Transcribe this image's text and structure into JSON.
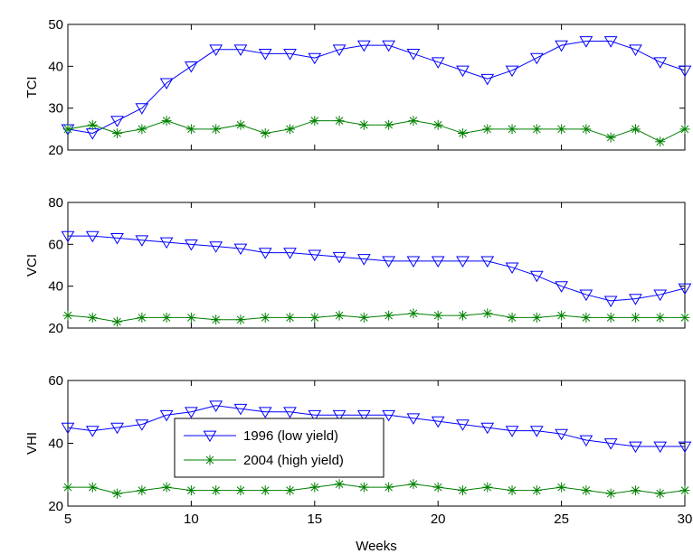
{
  "chart_data": [
    {
      "type": "line",
      "ylabel": "TCI",
      "xlim": [
        5,
        30
      ],
      "ylim": [
        20,
        50
      ],
      "yticks": [
        20,
        30,
        40,
        50
      ],
      "x": [
        5,
        6,
        7,
        8,
        9,
        10,
        11,
        12,
        13,
        14,
        15,
        16,
        17,
        18,
        19,
        20,
        21,
        22,
        23,
        24,
        25,
        26,
        27,
        28,
        29,
        30
      ],
      "series": [
        {
          "name": "1996 (low yield)",
          "color": "#0000ff",
          "marker": "triangle-down",
          "values": [
            25,
            24,
            27,
            30,
            36,
            40,
            44,
            44,
            43,
            43,
            42,
            44,
            45,
            45,
            43,
            41,
            39,
            37,
            39,
            42,
            45,
            46,
            46,
            44,
            41,
            39
          ]
        },
        {
          "name": "2004 (high yield)",
          "color": "#008000",
          "marker": "asterisk",
          "values": [
            25,
            26,
            24,
            25,
            27,
            25,
            25,
            26,
            24,
            25,
            27,
            27,
            26,
            26,
            27,
            26,
            24,
            25,
            25,
            25,
            25,
            25,
            23,
            25,
            22,
            25
          ]
        }
      ]
    },
    {
      "type": "line",
      "ylabel": "VCI",
      "xlim": [
        5,
        30
      ],
      "ylim": [
        20,
        80
      ],
      "yticks": [
        20,
        40,
        60,
        80
      ],
      "x": [
        5,
        6,
        7,
        8,
        9,
        10,
        11,
        12,
        13,
        14,
        15,
        16,
        17,
        18,
        19,
        20,
        21,
        22,
        23,
        24,
        25,
        26,
        27,
        28,
        29,
        30
      ],
      "series": [
        {
          "name": "1996 (low yield)",
          "color": "#0000ff",
          "marker": "triangle-down",
          "values": [
            64,
            64,
            63,
            62,
            61,
            60,
            59,
            58,
            56,
            56,
            55,
            54,
            53,
            52,
            52,
            52,
            52,
            52,
            49,
            45,
            40,
            36,
            33,
            34,
            36,
            39
          ]
        },
        {
          "name": "2004 (high yield)",
          "color": "#008000",
          "marker": "asterisk",
          "values": [
            26,
            25,
            23,
            25,
            25,
            25,
            24,
            24,
            25,
            25,
            25,
            26,
            25,
            26,
            27,
            26,
            26,
            27,
            25,
            25,
            26,
            25,
            25,
            25,
            25,
            25
          ]
        }
      ]
    },
    {
      "type": "line",
      "ylabel": "VHI",
      "xlabel": "Weeks",
      "xlim": [
        5,
        30
      ],
      "ylim": [
        20,
        60
      ],
      "yticks": [
        20,
        40,
        60
      ],
      "xticks": [
        5,
        10,
        15,
        20,
        25,
        30
      ],
      "legend_position": "lower-left",
      "x": [
        5,
        6,
        7,
        8,
        9,
        10,
        11,
        12,
        13,
        14,
        15,
        16,
        17,
        18,
        19,
        20,
        21,
        22,
        23,
        24,
        25,
        26,
        27,
        28,
        29,
        30
      ],
      "series": [
        {
          "name": "1996 (low yield)",
          "color": "#0000ff",
          "marker": "triangle-down",
          "values": [
            45,
            44,
            45,
            46,
            49,
            50,
            52,
            51,
            50,
            50,
            49,
            49,
            49,
            49,
            48,
            47,
            46,
            45,
            44,
            44,
            43,
            41,
            40,
            39,
            39,
            39
          ]
        },
        {
          "name": "2004 (high yield)",
          "color": "#008000",
          "marker": "asterisk",
          "values": [
            26,
            26,
            24,
            25,
            26,
            25,
            25,
            25,
            25,
            25,
            26,
            27,
            26,
            26,
            27,
            26,
            25,
            26,
            25,
            25,
            26,
            25,
            24,
            25,
            24,
            25
          ]
        }
      ],
      "legend": [
        "1996 (low yield)",
        "2004 (high yield)"
      ]
    }
  ]
}
